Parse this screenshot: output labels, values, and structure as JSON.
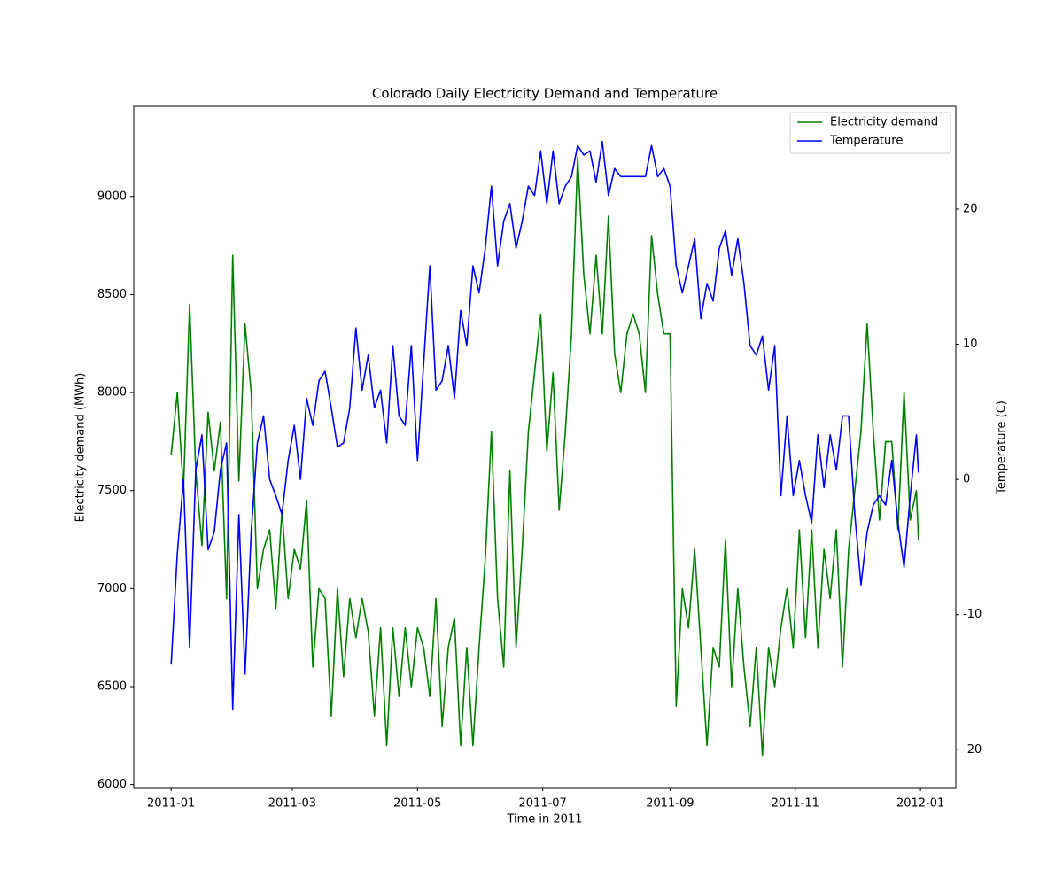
{
  "chart_data": {
    "type": "line",
    "title": "Colorado Daily Electricity Demand and Temperature",
    "xlabel": "Time in 2011",
    "ylabel": "Electricity demand (MWh)",
    "y2label": "Temperature (C)",
    "legend": "upper right",
    "xlim": [
      -18.2,
      382.2
    ],
    "ylim": [
      5985,
      9460
    ],
    "y2lim": [
      -22.8,
      27.6
    ],
    "xticks": [
      {
        "value": 0,
        "label": "2011-01"
      },
      {
        "value": 59,
        "label": "2011-03"
      },
      {
        "value": 120,
        "label": "2011-05"
      },
      {
        "value": 181,
        "label": "2011-07"
      },
      {
        "value": 243,
        "label": "2011-09"
      },
      {
        "value": 304,
        "label": "2011-11"
      },
      {
        "value": 365,
        "label": "2012-01"
      }
    ],
    "yticks": [
      6000,
      6500,
      7000,
      7500,
      8000,
      8500,
      9000
    ],
    "y2ticks": [
      -20,
      -10,
      0,
      10,
      20
    ],
    "x": [
      0,
      3,
      6,
      9,
      12,
      15,
      18,
      21,
      24,
      27,
      30,
      33,
      36,
      39,
      42,
      45,
      48,
      51,
      54,
      57,
      60,
      63,
      66,
      69,
      72,
      75,
      78,
      81,
      84,
      87,
      90,
      93,
      96,
      99,
      102,
      105,
      108,
      111,
      114,
      117,
      120,
      123,
      126,
      129,
      132,
      135,
      138,
      141,
      144,
      147,
      150,
      153,
      156,
      159,
      162,
      165,
      168,
      171,
      174,
      177,
      180,
      183,
      186,
      189,
      192,
      195,
      198,
      201,
      204,
      207,
      210,
      213,
      216,
      219,
      222,
      225,
      228,
      231,
      234,
      237,
      240,
      243,
      246,
      249,
      252,
      255,
      258,
      261,
      264,
      267,
      270,
      273,
      276,
      279,
      282,
      285,
      288,
      291,
      294,
      297,
      300,
      303,
      306,
      309,
      312,
      315,
      318,
      321,
      324,
      327,
      330,
      333,
      336,
      339,
      342,
      345,
      348,
      351,
      354,
      357,
      360,
      363,
      364
    ],
    "series": [
      {
        "name": "Electricity demand",
        "color": "#008000",
        "axis": "y",
        "values": [
          7680,
          8000,
          7500,
          8450,
          7600,
          7220,
          7900,
          7600,
          7850,
          6950,
          8700,
          7550,
          8350,
          8000,
          7000,
          7200,
          7300,
          6900,
          7400,
          6950,
          7200,
          7100,
          7450,
          6600,
          7000,
          6950,
          6350,
          7000,
          6550,
          6950,
          6750,
          6950,
          6780,
          6350,
          6800,
          6200,
          6800,
          6450,
          6800,
          6500,
          6800,
          6700,
          6450,
          6950,
          6300,
          6700,
          6850,
          6200,
          6700,
          6200,
          6700,
          7150,
          7800,
          6950,
          6600,
          7600,
          6700,
          7200,
          7800,
          8100,
          8400,
          7700,
          8100,
          7400,
          7800,
          8300,
          9200,
          8600,
          8300,
          8700,
          8300,
          8900,
          8200,
          8000,
          8300,
          8400,
          8300,
          8000,
          8800,
          8500,
          8300,
          8300,
          6400,
          7000,
          6800,
          7200,
          6700,
          6200,
          6700,
          6600,
          7250,
          6500,
          7000,
          6600,
          6300,
          6700,
          6150,
          6700,
          6500,
          6800,
          7000,
          6700,
          7300,
          6750,
          7300,
          6700,
          7200,
          6950,
          7300,
          6600,
          7200,
          7500,
          7800,
          8350,
          7800,
          7350,
          7750,
          7750,
          7300,
          8000,
          7350,
          7500,
          7250
        ]
      },
      {
        "name": "Temperature",
        "color": "#0000ff",
        "axis": "y2",
        "values": [
          -13.7,
          -5.5,
          0,
          -12.4,
          0.7,
          3.3,
          -5.2,
          -3.9,
          0.7,
          2.7,
          -17,
          -2.6,
          -14.4,
          -3.9,
          2.7,
          4.7,
          0,
          -1.2,
          -2.6,
          1.4,
          4,
          0,
          6,
          4,
          7.3,
          8,
          5.3,
          2.4,
          2.7,
          5.3,
          11.2,
          6.6,
          9.2,
          5.3,
          6.6,
          2.7,
          9.9,
          4.7,
          4,
          9.9,
          1.4,
          8.6,
          15.8,
          6.6,
          7.3,
          9.9,
          6,
          12.5,
          9.9,
          15.8,
          13.8,
          17.1,
          21.7,
          15.8,
          19.1,
          20.4,
          17.1,
          19.1,
          21.7,
          21,
          24.3,
          20.4,
          24.3,
          20.4,
          21.7,
          22.4,
          24.7,
          24,
          24.3,
          22,
          25,
          21,
          23,
          22.4,
          22.4,
          22.4,
          22.4,
          22.4,
          24.7,
          22.4,
          23,
          21.7,
          15.8,
          13.8,
          15.8,
          17.8,
          11.9,
          14.5,
          13.2,
          17.1,
          18.4,
          15.1,
          17.8,
          14.5,
          9.9,
          9.2,
          10.6,
          6.6,
          9.9,
          -1.2,
          4.7,
          -1.2,
          1.4,
          -1.2,
          -3.2,
          3.3,
          -0.6,
          3.3,
          0.7,
          4.7,
          4.7,
          -2.6,
          -7.8,
          -3.9,
          -1.9,
          -1.2,
          -1.9,
          1.4,
          -3.2,
          -6.5,
          -1.2,
          3.3,
          0.5
        ]
      }
    ]
  }
}
